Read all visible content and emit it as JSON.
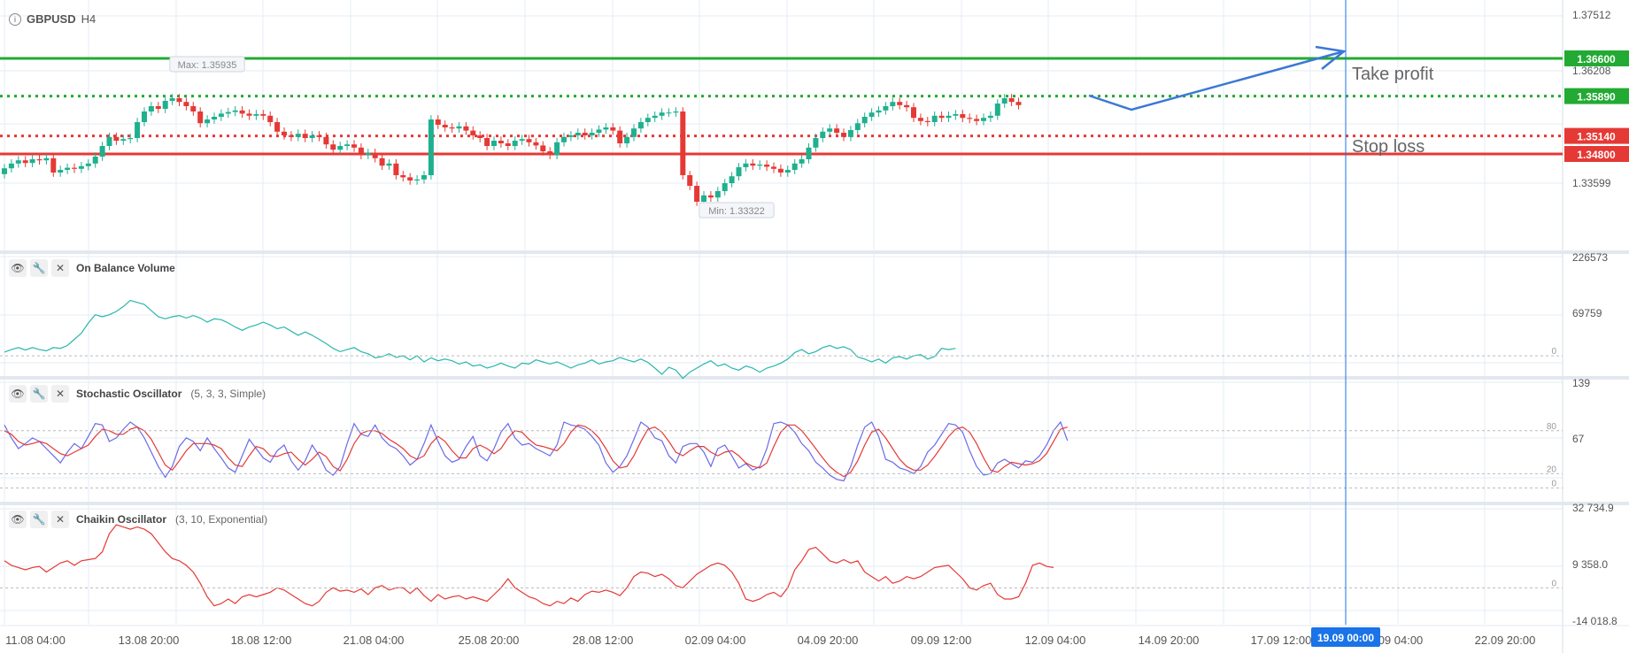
{
  "symbol": "GBPUSD",
  "timeframe": "H4",
  "colors": {
    "up": "#1fb08f",
    "down": "#e53935",
    "tp": "#22aa33",
    "sl": "#e53935",
    "arrow": "#3b78d6",
    "cursor": "#1a73e8",
    "obv": "#2ab7ac",
    "stoch_k": "#6a6ae8",
    "stoch_d": "#e53935",
    "chaikin": "#e53935"
  },
  "price_scale": [
    "1.37512",
    "1.36208",
    "1.33599"
  ],
  "levels": [
    {
      "price": 1.366,
      "label": "1.36600",
      "style": "solid",
      "color_key": "tp"
    },
    {
      "price": 1.3589,
      "label": "1.35890",
      "style": "dotted",
      "color_key": "tp"
    },
    {
      "price": 1.3514,
      "label": "1.35140",
      "style": "dotted",
      "color_key": "sl"
    },
    {
      "price": 1.348,
      "label": "1.34800",
      "style": "solid",
      "color_key": "sl"
    }
  ],
  "annotations": {
    "take_profit": "Take profit",
    "stop_loss": "Stop loss",
    "max_label": "Max: 1.35935",
    "min_label": "Min: 1.33322"
  },
  "x_axis": {
    "labels": [
      "11.08 04:00",
      "13.08 20:00",
      "18.08 12:00",
      "21.08 04:00",
      "25.08 20:00",
      "28.08 12:00",
      "02.09 04:00",
      "04.09 20:00",
      "09.09 12:00",
      "12.09 04:00",
      "14.09 20:00",
      "17.09 12:00",
      "09 04:00",
      "22.09 20:00"
    ],
    "cursor_label": "19.09 00:00"
  },
  "indicators": {
    "obv": {
      "name": "On Balance Volume",
      "params": "",
      "scale": [
        "226573",
        "69759"
      ],
      "zero": "0"
    },
    "stoch": {
      "name": "Stochastic Oscillator",
      "params": "(5, 3, 3, Simple)",
      "scale": [
        "139",
        "67"
      ],
      "level_80": "80",
      "level_20": "20",
      "zero": "0"
    },
    "chaikin": {
      "name": "Chaikin Oscillator",
      "params": "(3, 10, Exponential)",
      "scale": [
        "32 734.9",
        "9 358.0",
        "-14 018.8"
      ],
      "zero": "0"
    }
  },
  "chart_data": [
    {
      "type": "candlestick",
      "title": "GBPUSD H4",
      "ylim": [
        1.33,
        1.377
      ],
      "close": [
        1.3453,
        1.3462,
        1.3468,
        1.3463,
        1.347,
        1.3468,
        1.3472,
        1.3445,
        1.345,
        1.3454,
        1.3452,
        1.3457,
        1.3462,
        1.3475,
        1.3495,
        1.3512,
        1.3505,
        1.3508,
        1.351,
        1.354,
        1.356,
        1.357,
        1.3565,
        1.358,
        1.3585,
        1.3578,
        1.357,
        1.356,
        1.3538,
        1.3545,
        1.355,
        1.3556,
        1.3559,
        1.3562,
        1.3556,
        1.3552,
        1.3555,
        1.3552,
        1.354,
        1.3522,
        1.3515,
        1.3512,
        1.3518,
        1.351,
        1.3515,
        1.3512,
        1.3498,
        1.3488,
        1.3495,
        1.3498,
        1.3492,
        1.3478,
        1.3482,
        1.3472,
        1.3458,
        1.3462,
        1.344,
        1.3436,
        1.343,
        1.3432,
        1.344,
        1.3545,
        1.3535,
        1.353,
        1.3528,
        1.3532,
        1.3524,
        1.3515,
        1.351,
        1.3495,
        1.3505,
        1.35,
        1.3495,
        1.3505,
        1.3508,
        1.3502,
        1.3496,
        1.3485,
        1.3478,
        1.3502,
        1.3512,
        1.3515,
        1.352,
        1.3515,
        1.352,
        1.3526,
        1.353,
        1.3524,
        1.35,
        1.3512,
        1.3528,
        1.354,
        1.3548,
        1.3552,
        1.3558,
        1.3558,
        1.356,
        1.344,
        1.342,
        1.339,
        1.3402,
        1.3398,
        1.341,
        1.3425,
        1.3438,
        1.3455,
        1.3462,
        1.3458,
        1.346,
        1.3456,
        1.3452,
        1.3445,
        1.345,
        1.3462,
        1.347,
        1.3492,
        1.351,
        1.3522,
        1.3528,
        1.352,
        1.3512,
        1.3525,
        1.3538,
        1.355,
        1.3558,
        1.3562,
        1.357,
        1.3578,
        1.3572,
        1.3568,
        1.3548,
        1.3542,
        1.354,
        1.3552,
        1.3548,
        1.3552,
        1.3555,
        1.3548,
        1.3546,
        1.3542,
        1.3548,
        1.3552,
        1.3575,
        1.3585,
        1.3578,
        1.3572
      ],
      "open": [
        1.3442,
        1.3453,
        1.3462,
        1.3468,
        1.3463,
        1.347,
        1.3468,
        1.3472,
        1.3445,
        1.345,
        1.3454,
        1.3452,
        1.3457,
        1.3462,
        1.3475,
        1.3495,
        1.3512,
        1.3505,
        1.3508,
        1.351,
        1.354,
        1.356,
        1.357,
        1.3565,
        1.358,
        1.3585,
        1.3578,
        1.357,
        1.356,
        1.3538,
        1.3545,
        1.355,
        1.3556,
        1.3559,
        1.3562,
        1.3556,
        1.3552,
        1.3555,
        1.3552,
        1.354,
        1.3522,
        1.3515,
        1.3512,
        1.3518,
        1.351,
        1.3515,
        1.3512,
        1.3498,
        1.3488,
        1.3495,
        1.3498,
        1.3492,
        1.3478,
        1.3482,
        1.3472,
        1.3458,
        1.3462,
        1.344,
        1.3436,
        1.343,
        1.3432,
        1.344,
        1.3545,
        1.3535,
        1.353,
        1.3528,
        1.3532,
        1.3524,
        1.3515,
        1.351,
        1.3495,
        1.3505,
        1.35,
        1.3495,
        1.3505,
        1.3508,
        1.3502,
        1.3496,
        1.3485,
        1.3478,
        1.3502,
        1.3512,
        1.3515,
        1.352,
        1.3515,
        1.352,
        1.3526,
        1.353,
        1.3524,
        1.35,
        1.3512,
        1.3528,
        1.354,
        1.3548,
        1.3552,
        1.3558,
        1.3558,
        1.356,
        1.344,
        1.342,
        1.339,
        1.3402,
        1.3398,
        1.341,
        1.3425,
        1.3438,
        1.3455,
        1.3462,
        1.3458,
        1.346,
        1.3456,
        1.3452,
        1.3445,
        1.345,
        1.3462,
        1.347,
        1.3492,
        1.351,
        1.3522,
        1.3528,
        1.352,
        1.3512,
        1.3525,
        1.3538,
        1.355,
        1.3558,
        1.3562,
        1.357,
        1.3578,
        1.3572,
        1.3568,
        1.3548,
        1.3542,
        1.354,
        1.3552,
        1.3548,
        1.3552,
        1.3555,
        1.3548,
        1.3546,
        1.3542,
        1.3548,
        1.3552,
        1.3575,
        1.3585,
        1.3578
      ]
    },
    {
      "type": "line",
      "title": "On Balance Volume",
      "ylim": [
        -30000,
        226573
      ],
      "values": [
        9000,
        15000,
        20000,
        14000,
        20000,
        15000,
        12000,
        20000,
        18000,
        25000,
        40000,
        55000,
        80000,
        100000,
        95000,
        100000,
        108000,
        120000,
        135000,
        130000,
        125000,
        110000,
        95000,
        90000,
        95000,
        98000,
        92000,
        98000,
        92000,
        82000,
        90000,
        88000,
        80000,
        70000,
        62000,
        70000,
        75000,
        82000,
        75000,
        66000,
        70000,
        60000,
        50000,
        58000,
        50000,
        40000,
        30000,
        18000,
        10000,
        15000,
        20000,
        10000,
        5000,
        -5000,
        -2000,
        5000,
        -4000,
        0,
        -10000,
        0,
        -15000,
        -5000,
        -12000,
        -8000,
        -12000,
        -20000,
        -15000,
        -25000,
        -22000,
        -30000,
        -25000,
        -18000,
        -25000,
        -30000,
        -18000,
        -20000,
        -10000,
        -15000,
        -20000,
        -15000,
        -22000,
        -30000,
        -22000,
        -18000,
        -10000,
        -20000,
        -15000,
        -12000,
        -4000,
        -10000,
        -15000,
        -8000,
        -16000,
        -30000,
        -45000,
        -28000,
        -35000,
        -55000,
        -40000,
        -30000,
        -20000,
        -12000,
        -25000,
        -20000,
        -30000,
        -35000,
        -25000,
        -30000,
        -40000,
        -30000,
        -25000,
        -18000,
        -8000,
        8000,
        15000,
        5000,
        10000,
        20000,
        25000,
        18000,
        22000,
        15000,
        -3000,
        -8000,
        -15000,
        -8000,
        -18000,
        -5000,
        -2000,
        -8000,
        0,
        3000,
        -8000,
        -2000,
        18000,
        15000,
        18000
      ],
      "zero_line": 0
    },
    {
      "type": "line",
      "title": "Stochastic Oscillator",
      "ylim": [
        -8,
        139
      ],
      "series": [
        {
          "name": "%K",
          "values": [
            88,
            70,
            55,
            62,
            70,
            65,
            55,
            45,
            35,
            50,
            62,
            55,
            72,
            90,
            88,
            65,
            70,
            82,
            92,
            85,
            70,
            50,
            30,
            15,
            30,
            58,
            70,
            65,
            52,
            70,
            55,
            42,
            28,
            22,
            45,
            68,
            55,
            42,
            36,
            52,
            60,
            38,
            25,
            38,
            60,
            45,
            25,
            18,
            30,
            62,
            90,
            75,
            72,
            88,
            70,
            60,
            55,
            45,
            32,
            40,
            62,
            88,
            65,
            45,
            36,
            40,
            58,
            72,
            45,
            38,
            55,
            78,
            90,
            70,
            60,
            62,
            55,
            50,
            45,
            60,
            92,
            88,
            86,
            82,
            72,
            60,
            35,
            22,
            30,
            45,
            68,
            92,
            85,
            70,
            66,
            45,
            35,
            58,
            62,
            62,
            50,
            30,
            55,
            60,
            45,
            28,
            34,
            25,
            30,
            55,
            90,
            92,
            88,
            78,
            62,
            52,
            36,
            28,
            18,
            12,
            10,
            30,
            60,
            85,
            92,
            72,
            40,
            36,
            28,
            25,
            20,
            30,
            50,
            60,
            75,
            90,
            88,
            78,
            52,
            30,
            18,
            20,
            35,
            40,
            34,
            28,
            38,
            36,
            45,
            60,
            80,
            92,
            66
          ]
        },
        {
          "name": "%D",
          "values": [
            80,
            75,
            65,
            60,
            62,
            65,
            62,
            55,
            48,
            45,
            50,
            55,
            60,
            72,
            82,
            80,
            75,
            75,
            82,
            85,
            80,
            68,
            50,
            32,
            25,
            38,
            52,
            62,
            62,
            62,
            60,
            55,
            42,
            32,
            30,
            45,
            58,
            55,
            45,
            44,
            48,
            50,
            40,
            32,
            40,
            50,
            44,
            30,
            24,
            40,
            62,
            76,
            80,
            80,
            76,
            68,
            62,
            55,
            45,
            40,
            45,
            62,
            72,
            65,
            52,
            42,
            42,
            55,
            60,
            55,
            48,
            55,
            70,
            80,
            78,
            68,
            60,
            58,
            55,
            52,
            62,
            78,
            88,
            86,
            80,
            70,
            55,
            38,
            28,
            30,
            45,
            65,
            82,
            85,
            78,
            65,
            50,
            45,
            52,
            58,
            58,
            50,
            45,
            50,
            52,
            45,
            35,
            30,
            28,
            35,
            58,
            78,
            88,
            88,
            80,
            68,
            55,
            42,
            30,
            22,
            16,
            22,
            38,
            60,
            78,
            82,
            70,
            55,
            40,
            30,
            25,
            25,
            32,
            44,
            58,
            72,
            82,
            85,
            78,
            62,
            42,
            25,
            22,
            30,
            36,
            34,
            32,
            34,
            38,
            48,
            65,
            82,
            85
          ]
        }
      ],
      "levels": [
        80,
        20,
        0
      ]
    },
    {
      "type": "line",
      "title": "Chaikin Oscillator",
      "ylim": [
        -14018.8,
        32734.9
      ],
      "values": [
        12000,
        10000,
        9000,
        8000,
        9000,
        9500,
        7000,
        9000,
        11000,
        12000,
        10000,
        12000,
        12500,
        13000,
        16000,
        24000,
        28000,
        27000,
        26000,
        27000,
        26000,
        24000,
        20000,
        16000,
        13000,
        12000,
        10000,
        7000,
        2000,
        -4000,
        -8000,
        -7000,
        -5000,
        -7000,
        -4000,
        -3000,
        -4000,
        -3000,
        -2000,
        0,
        -1000,
        -3000,
        -5000,
        -7000,
        -8000,
        -6000,
        -2000,
        0,
        -1500,
        -1000,
        -2000,
        -500,
        -3000,
        0,
        1000,
        -1000,
        0,
        0,
        -2500,
        0,
        -3500,
        -6000,
        -3000,
        -5000,
        -4000,
        -3500,
        -5000,
        -4000,
        -5000,
        -6000,
        -3000,
        0,
        4000,
        0,
        -2000,
        -4000,
        -5000,
        -7000,
        -8000,
        -6000,
        -7000,
        -4500,
        -6000,
        -3000,
        -1500,
        -2000,
        -1000,
        -2000,
        -3500,
        0,
        5000,
        7000,
        6500,
        5000,
        6000,
        4000,
        1000,
        0,
        3000,
        6000,
        8000,
        10000,
        11000,
        10000,
        7000,
        2000,
        -5000,
        -6000,
        -5000,
        -3000,
        -2000,
        -4000,
        0,
        8000,
        12000,
        17000,
        18000,
        15000,
        12000,
        11000,
        12500,
        11000,
        12000,
        7000,
        5000,
        3000,
        5000,
        2000,
        3000,
        5000,
        4000,
        5000,
        7000,
        9000,
        9500,
        10000,
        7000,
        4000,
        0,
        -1000,
        1000,
        2000,
        -3000,
        -5000,
        -5000,
        -4000,
        2000,
        10000,
        11000,
        9500,
        9000
      ]
    }
  ]
}
